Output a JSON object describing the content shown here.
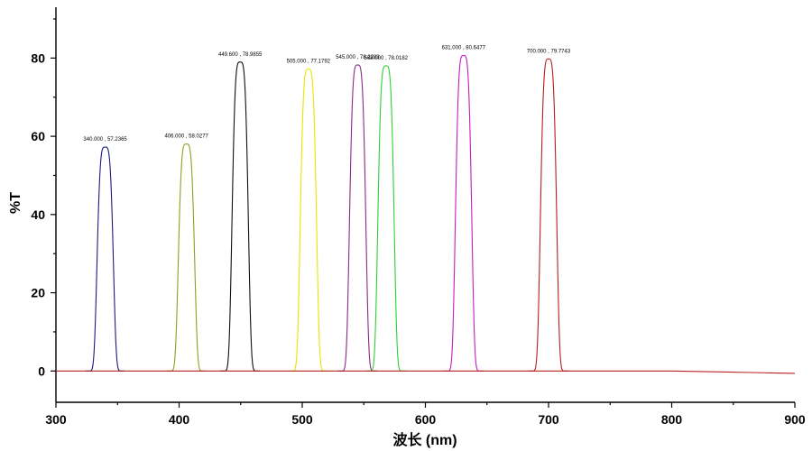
{
  "chart_data": {
    "type": "line",
    "xlabel": "波长 (nm)",
    "ylabel": "%T",
    "xlim": [
      300,
      900
    ],
    "ylim": [
      -8,
      93
    ],
    "x_ticks": [
      "300",
      "400",
      "500",
      "600",
      "700",
      "800",
      "900"
    ],
    "y_ticks": [
      "0",
      "20",
      "40",
      "60",
      "80"
    ],
    "grid": false,
    "peak_width_nm": 11,
    "series": [
      {
        "color": "#1a1a80",
        "peak_x": 340,
        "peak_y": 57.2365,
        "label": "340.000 , 57.2365"
      },
      {
        "color": "#8ca020",
        "peak_x": 406,
        "peak_y": 58.0277,
        "label": "406.000 , 58.0277"
      },
      {
        "color": "#101010",
        "peak_x": 449.6,
        "peak_y": 78.9855,
        "label": "449.600 , 78.9855"
      },
      {
        "color": "#e6e600",
        "peak_x": 505,
        "peak_y": 77.1792,
        "label": "505.000 , 77.1792"
      },
      {
        "color": "#8a2a8a",
        "peak_x": 545,
        "peak_y": 78.2283,
        "label": "545.000 , 78.2283"
      },
      {
        "color": "#30d030",
        "peak_x": 568,
        "peak_y": 78.0182,
        "label": "568.000 , 78.0182"
      },
      {
        "color": "#c020c0",
        "peak_x": 631,
        "peak_y": 80.6477,
        "label": "631.000 , 80.6477"
      },
      {
        "color": "#b82020",
        "peak_x": 700,
        "peak_y": 79.7743,
        "label": "700.000 , 79.7743"
      }
    ],
    "baseline": {
      "color": "#b82020",
      "y_start": 0,
      "y_end": -0.6
    }
  }
}
